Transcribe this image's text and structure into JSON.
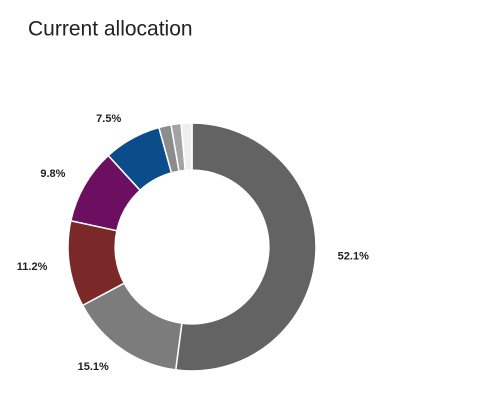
{
  "chart_data": {
    "type": "pie",
    "title": "Current allocation",
    "values": [
      52.1,
      15.1,
      11.2,
      9.8,
      7.5,
      1.6,
      1.3,
      1.4
    ],
    "value_labels": [
      "52.1%",
      "15.1%",
      "11.2%",
      "9.8%",
      "7.5%",
      null,
      null,
      null
    ],
    "colors": [
      "#636363",
      "#7c7c7c",
      "#7b2828",
      "#6c0f60",
      "#0b4d8a",
      "#8c8c8c",
      "#a3a3a3",
      "#efefef"
    ],
    "inner_radius_ratio": 0.62
  }
}
